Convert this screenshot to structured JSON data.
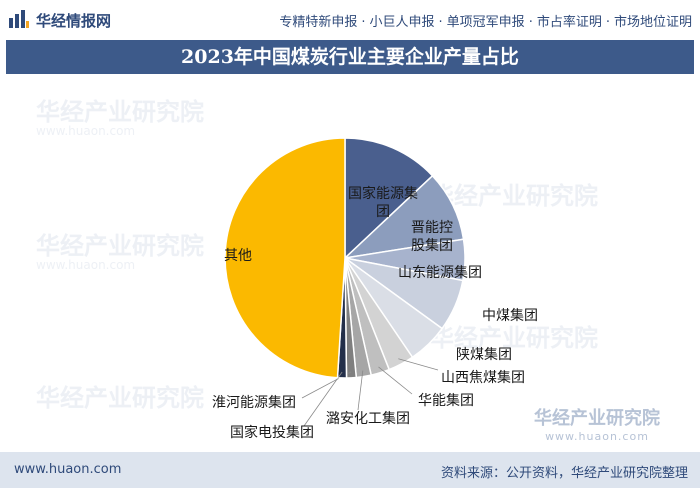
{
  "header": {
    "site_name": "华经情报网",
    "nav": [
      "专精特新申报",
      "小巨人申报",
      "单项冠军申报",
      "市占率证明",
      "市场地位证明"
    ],
    "separator": "·"
  },
  "watermark": {
    "text": "华经产业研究院",
    "url": "www.huaon.com"
  },
  "chart_data": {
    "type": "pie",
    "title": "2023年中国煤炭行业主要企业产量占比",
    "start": "12 o'clock",
    "direction": "clockwise",
    "slices": [
      {
        "label": "国家能源集团",
        "value": 13.0,
        "color": "#4a5f8e"
      },
      {
        "label": "晋能控股集团",
        "value": 9.5,
        "color": "#8c9dbd"
      },
      {
        "label": "山东能源集团",
        "value": 5.5,
        "color": "#a7b3cd"
      },
      {
        "label": "中煤集团",
        "value": 7.0,
        "color": "#c9d0de"
      },
      {
        "label": "陕煤集团",
        "value": 5.5,
        "color": "#dadee6"
      },
      {
        "label": "山西焦煤集团",
        "value": 3.5,
        "color": "#d3d3d3"
      },
      {
        "label": "华能集团",
        "value": 2.5,
        "color": "#bfbfbf"
      },
      {
        "label": "潞安化工集团",
        "value": 2.0,
        "color": "#a6a6a6"
      },
      {
        "label": "淮河能源集团",
        "value": 1.3,
        "color": "#7f7f7f"
      },
      {
        "label": "国家电投集团",
        "value": 1.2,
        "color": "#232f4a"
      },
      {
        "label": "其他",
        "value": 49.0,
        "color": "#fbb900"
      }
    ]
  },
  "footer": {
    "url": "www.huaon.com",
    "source": "资料来源：公开资料，华经产业研究院整理"
  },
  "colors": {
    "title_bg": "#3d5a8a",
    "footer_bg": "#dde4ee",
    "brand_text": "#2f4a7a"
  }
}
